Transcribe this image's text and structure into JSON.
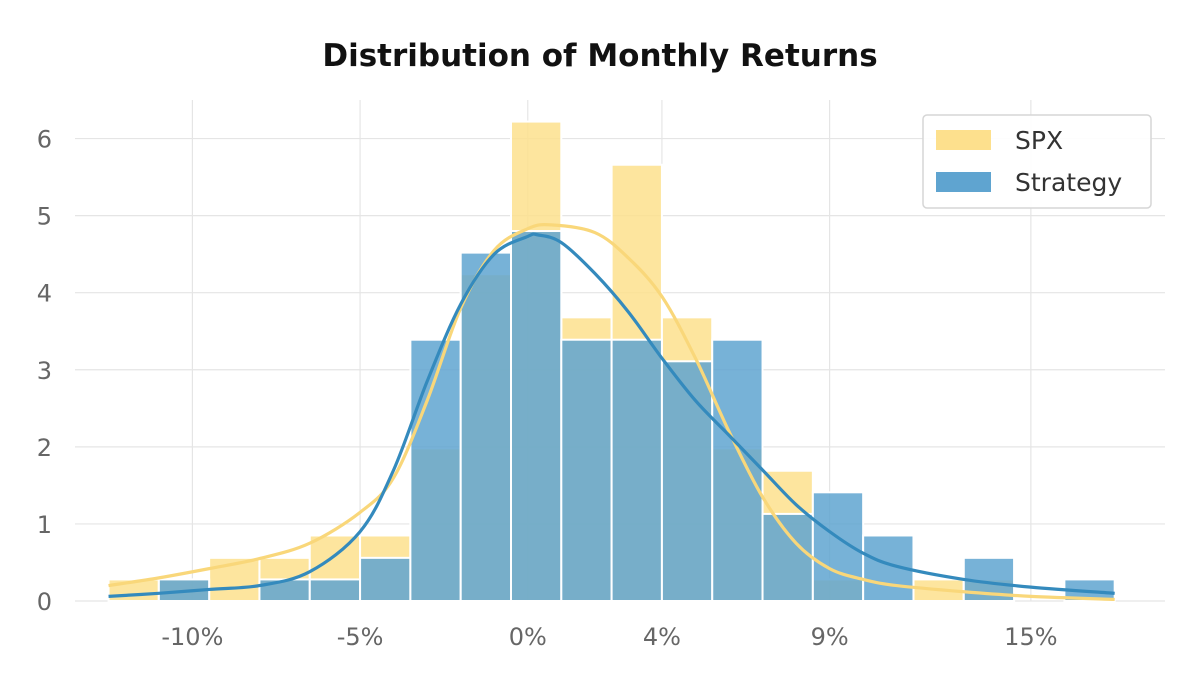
{
  "chart_data": {
    "type": "bar",
    "title": "Distribution of Monthly Returns",
    "xlabel": "",
    "ylabel": "",
    "bin_edges": [
      -12.5,
      -11.0,
      -9.5,
      -8.0,
      -6.5,
      -5.0,
      -3.5,
      -2.0,
      -0.5,
      1.0,
      2.5,
      4.0,
      5.5,
      7.0,
      8.5,
      10.0,
      11.5,
      13.0,
      14.5,
      16.0,
      17.5
    ],
    "x_ticks": [
      -10,
      -5,
      0,
      4,
      9,
      15
    ],
    "x_tick_labels": [
      "-10%",
      "-5%",
      "0%",
      "4%",
      "9%",
      "15%"
    ],
    "xlim": [
      -13.5,
      19
    ],
    "y_ticks": [
      0,
      1,
      2,
      3,
      4,
      5,
      6
    ],
    "y_tick_labels": [
      "0",
      "1",
      "2",
      "3",
      "4",
      "5",
      "6"
    ],
    "ylim": [
      0,
      6.5
    ],
    "grid": true,
    "legend_position": "top-right",
    "series": [
      {
        "name": "SPX",
        "color": "#fde08d",
        "line_color": "#f9d77a",
        "values": [
          0.28,
          0.28,
          0.56,
          0.56,
          0.85,
          0.85,
          1.98,
          4.24,
          6.22,
          3.68,
          5.66,
          3.68,
          1.98,
          1.69,
          0.28,
          0.0,
          0.28,
          0.28,
          0.0,
          0.0
        ],
        "kde": {
          "x": [
            -12.5,
            -11,
            -9.5,
            -8,
            -6.5,
            -5,
            -4,
            -3,
            -2,
            -1,
            0,
            0.7,
            2,
            3,
            4,
            5,
            6,
            7,
            8,
            9,
            10,
            11,
            13,
            15,
            17.5
          ],
          "y": [
            0.2,
            0.3,
            0.42,
            0.55,
            0.75,
            1.15,
            1.6,
            2.6,
            3.8,
            4.55,
            4.83,
            4.88,
            4.78,
            4.45,
            3.95,
            3.15,
            2.2,
            1.35,
            0.75,
            0.42,
            0.28,
            0.2,
            0.12,
            0.06,
            0.02
          ]
        }
      },
      {
        "name": "Strategy",
        "color": "#5fa4d0",
        "line_color": "#348abd",
        "values": [
          0.0,
          0.28,
          0.0,
          0.28,
          0.28,
          0.56,
          3.39,
          4.52,
          4.8,
          3.39,
          3.39,
          3.11,
          3.39,
          1.13,
          1.41,
          0.85,
          0.0,
          0.56,
          0.0,
          0.28
        ],
        "kde": {
          "x": [
            -12.5,
            -11,
            -9.5,
            -8,
            -6.5,
            -5,
            -4,
            -3,
            -2,
            -1,
            0,
            0.3,
            1,
            2,
            3,
            4,
            5,
            6,
            7,
            8,
            9,
            10,
            11,
            13,
            15,
            17.5
          ],
          "y": [
            0.06,
            0.1,
            0.15,
            0.2,
            0.38,
            0.9,
            1.7,
            2.85,
            3.85,
            4.5,
            4.73,
            4.75,
            4.65,
            4.25,
            3.75,
            3.15,
            2.6,
            2.15,
            1.7,
            1.25,
            0.9,
            0.62,
            0.45,
            0.28,
            0.18,
            0.1
          ]
        }
      }
    ]
  }
}
